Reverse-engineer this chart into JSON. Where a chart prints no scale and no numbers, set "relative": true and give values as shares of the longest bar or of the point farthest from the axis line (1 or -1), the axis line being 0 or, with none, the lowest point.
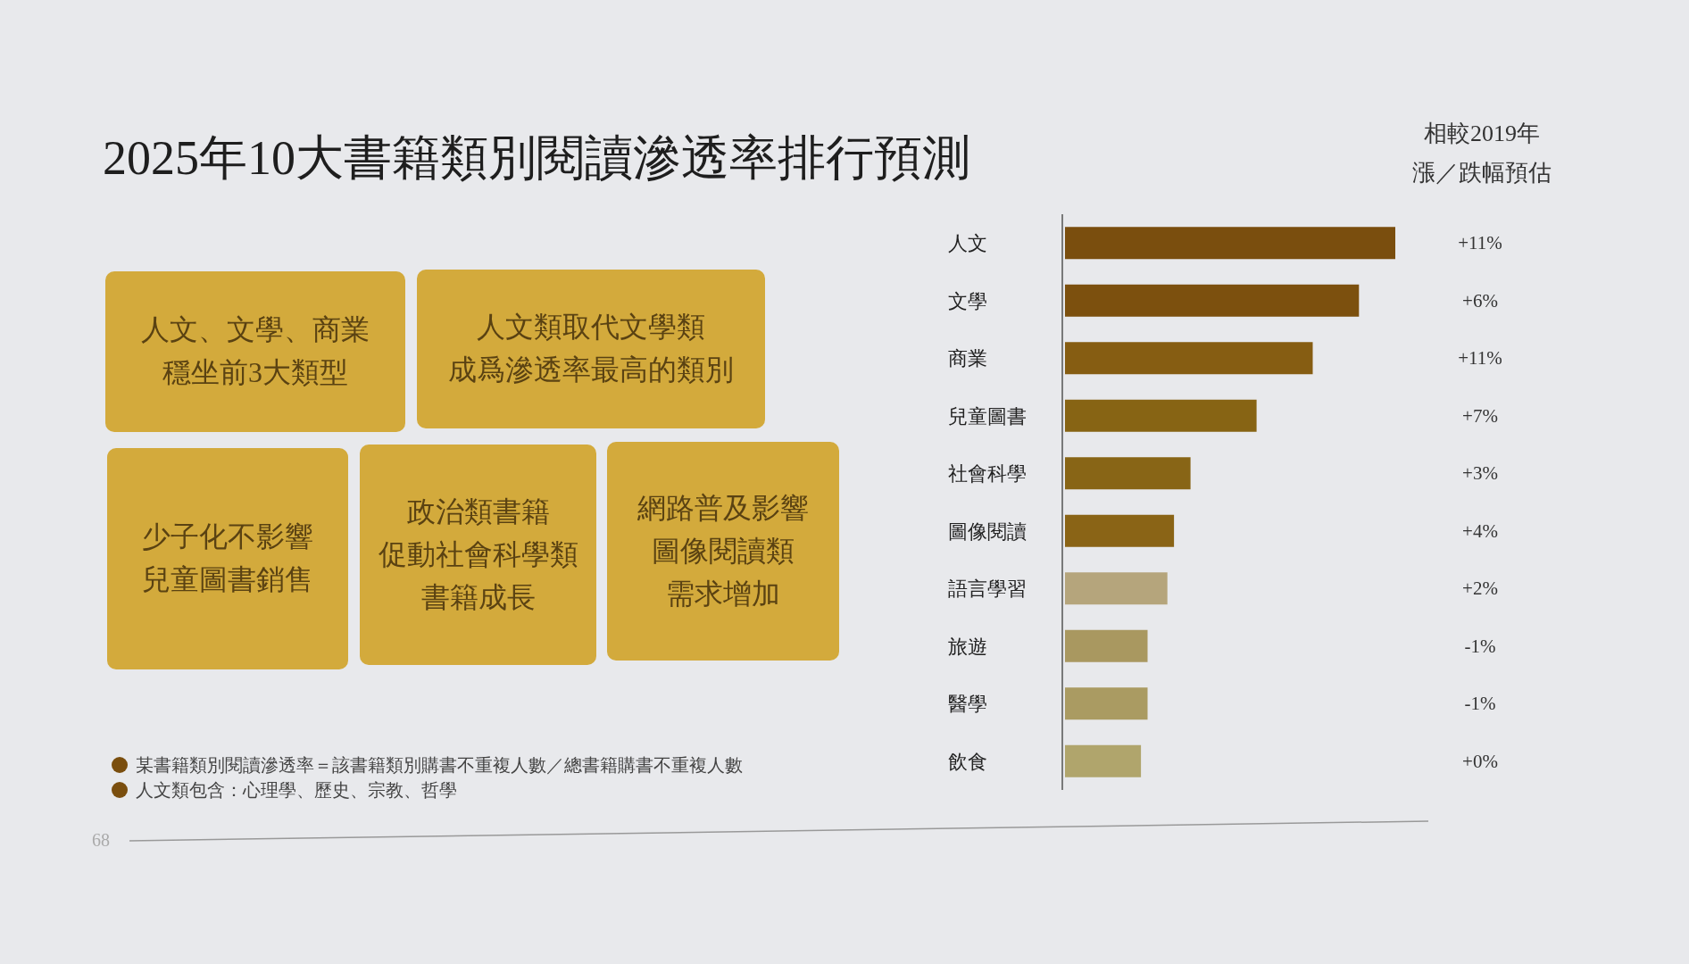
{
  "chart_data": {
    "type": "bar",
    "orientation": "horizontal",
    "relative": true,
    "title": "2025年10大書籍類別閱讀滲透率排行預測",
    "categories": [
      "人文",
      "文學",
      "商業",
      "兒童圖書",
      "社會科學",
      "圖像閱讀",
      "語言學習",
      "旅遊",
      "醫學",
      "飲食"
    ],
    "values": [
      1,
      0.89,
      0.75,
      0.58,
      0.38,
      0.33,
      0.31,
      0.25,
      0.25,
      0.23
    ],
    "colors": [
      "#7a4e0e",
      "#7c500e",
      "#865d12",
      "#876414",
      "#886516",
      "#8a6416",
      "#b5a57c",
      "#a99860",
      "#aa9b62",
      "#b0a56c"
    ],
    "annotations": [
      "人文、文學、商業穩坐前3大類型",
      "人文類取代文學類成爲滲透率最高的類別",
      "少子化不影響兒童圖書銷售",
      "政治類書籍促動社會科學類書籍成長",
      "網路普及影響圖像閱讀類需求增加",
      "相較2019年漲／跌幅預估",
      "某書籍類別閱讀滲透率＝該書籍類別購書不重複人數／總書籍購書不重複人數",
      "人文類包含：心理學、歷史、宗教、哲學",
      "68",
      "+11%",
      "+6%",
      "+11%",
      "+7%",
      "+3%",
      "+4%",
      "+2%",
      "-1%",
      "-1%",
      "+0%"
    ]
  }
}
